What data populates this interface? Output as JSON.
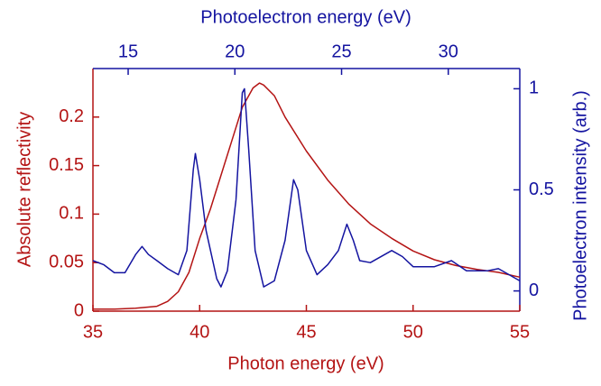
{
  "chart_data": {
    "type": "line",
    "xlabel": "Photon energy (eV)",
    "ylabel": "Absolute reflectivity",
    "y2label": "Photoelectron intensity (arb.)",
    "x2label": "Photoelectron energy (eV)",
    "xlim": [
      35,
      55
    ],
    "xticks": [
      35,
      40,
      45,
      50,
      55
    ],
    "x2lim": [
      13.35,
      33.35
    ],
    "x2ticks": [
      15,
      20,
      25,
      30
    ],
    "ylim": [
      0,
      0.25
    ],
    "yticks": [
      0,
      0.05,
      0.1,
      0.15,
      0.2
    ],
    "y2lim": [
      -0.1,
      1.1
    ],
    "y2ticks": [
      0,
      0.5,
      1
    ],
    "grid": false,
    "series": [
      {
        "name": "Absolute reflectivity",
        "color": "#b41414",
        "x": [
          35,
          36,
          37,
          38,
          38.5,
          39,
          39.5,
          40,
          40.5,
          41,
          41.5,
          42,
          42.5,
          42.8,
          43,
          43.5,
          44,
          45,
          46,
          47,
          48,
          49,
          50,
          51,
          52,
          53,
          54,
          55
        ],
        "values": [
          0.002,
          0.002,
          0.003,
          0.005,
          0.01,
          0.02,
          0.04,
          0.075,
          0.105,
          0.14,
          0.175,
          0.21,
          0.23,
          0.235,
          0.233,
          0.222,
          0.2,
          0.165,
          0.135,
          0.11,
          0.09,
          0.075,
          0.062,
          0.053,
          0.047,
          0.043,
          0.04,
          0.035
        ]
      },
      {
        "name": "Photoelectron intensity (arb.)",
        "color": "#1414a0",
        "axis": "y2",
        "x": [
          35,
          35.5,
          36,
          36.5,
          37,
          37.3,
          37.6,
          38,
          38.5,
          39,
          39.4,
          39.7,
          39.8,
          40,
          40.3,
          40.8,
          41,
          41.3,
          41.7,
          42,
          42.1,
          42.3,
          42.6,
          43,
          43.5,
          44,
          44.4,
          44.6,
          45,
          45.5,
          46,
          46.5,
          46.9,
          47.2,
          47.5,
          48,
          49,
          49.5,
          50,
          51,
          51.8,
          52.5,
          53.5,
          54,
          54.5,
          55
        ],
        "values": [
          0.15,
          0.13,
          0.09,
          0.09,
          0.18,
          0.22,
          0.18,
          0.15,
          0.11,
          0.08,
          0.2,
          0.6,
          0.68,
          0.55,
          0.3,
          0.06,
          0.02,
          0.1,
          0.45,
          0.98,
          1.0,
          0.7,
          0.2,
          0.02,
          0.05,
          0.25,
          0.55,
          0.5,
          0.2,
          0.08,
          0.13,
          0.2,
          0.33,
          0.25,
          0.15,
          0.14,
          0.2,
          0.17,
          0.12,
          0.12,
          0.15,
          0.1,
          0.1,
          0.11,
          0.08,
          0.05
        ]
      }
    ]
  }
}
